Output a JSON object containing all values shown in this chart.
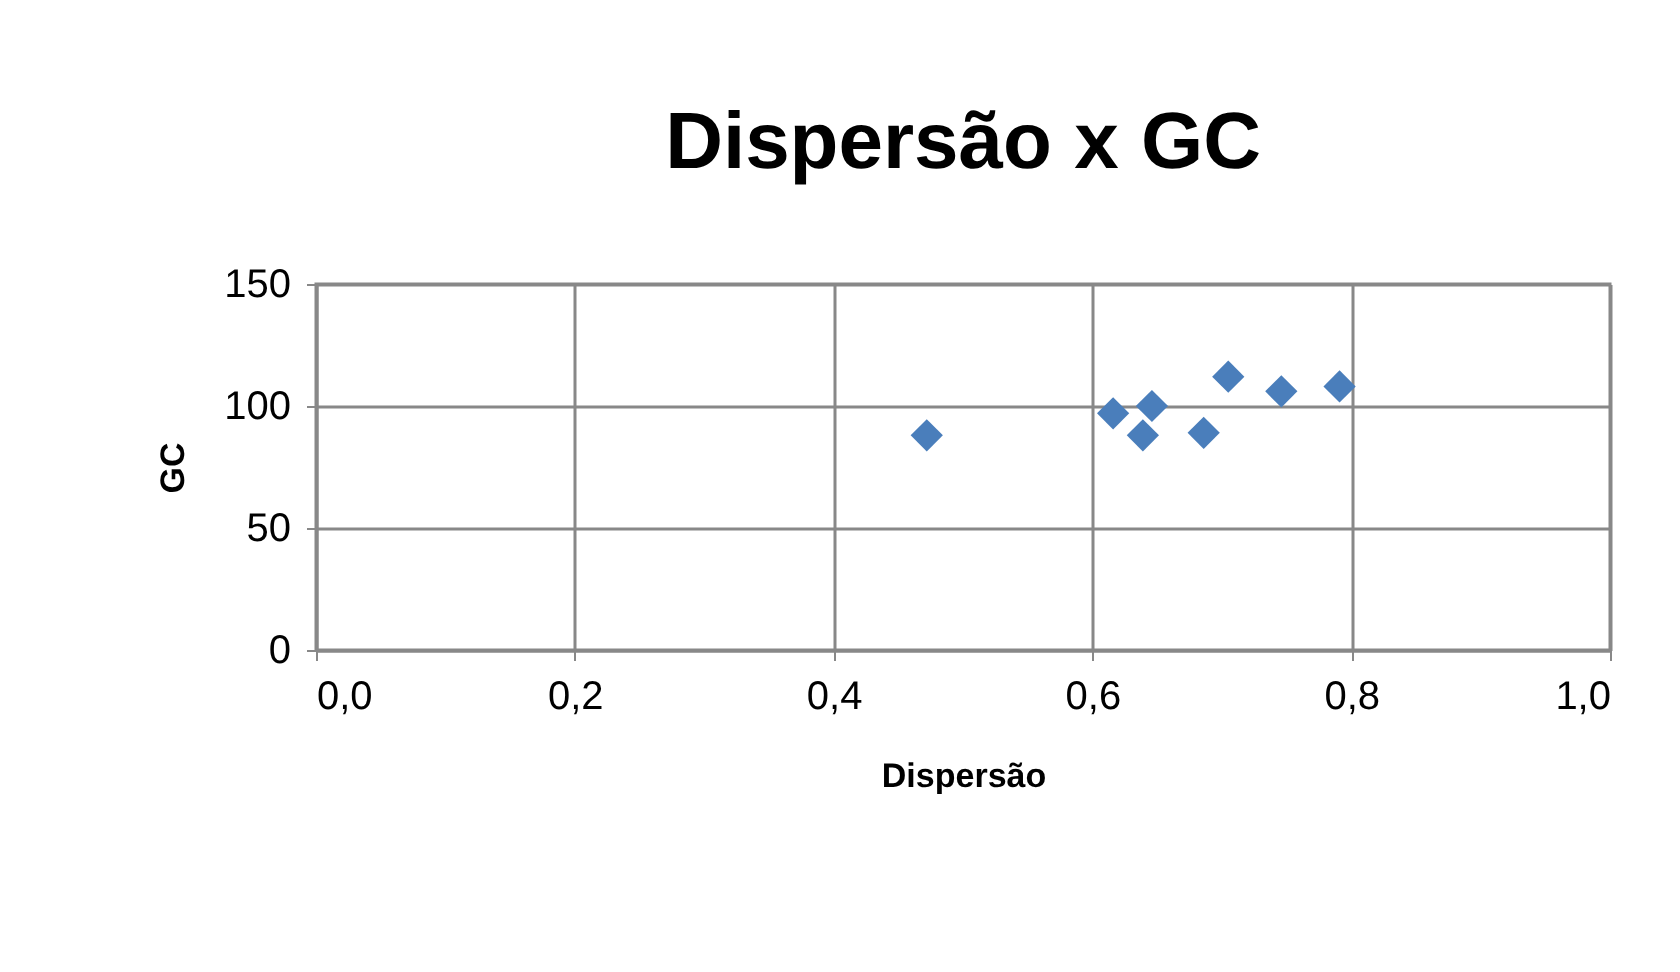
{
  "chart_data": {
    "type": "scatter",
    "title": "Dispersão x GC",
    "xlabel": "Dispersão",
    "ylabel": "GC",
    "x": [
      0.472,
      0.616,
      0.639,
      0.646,
      0.686,
      0.705,
      0.746,
      0.791
    ],
    "series": [
      {
        "color": "#4a7ebb",
        "values": [
          88,
          97,
          88,
          100,
          89,
          112,
          106,
          108
        ]
      }
    ],
    "xlim": [
      0,
      1
    ],
    "xticks": [
      {
        "value": 0,
        "label": "0,0"
      },
      {
        "value": 0.2,
        "label": "0,2"
      },
      {
        "value": 0.4,
        "label": "0,4"
      },
      {
        "value": 0.6,
        "label": "0,6"
      },
      {
        "value": 0.8,
        "label": "0,8"
      },
      {
        "value": 1,
        "label": "1,0"
      }
    ],
    "ylim": [
      0,
      150
    ],
    "yticks": [
      0,
      50,
      100,
      150
    ],
    "grid": true,
    "marker": "diamond"
  }
}
